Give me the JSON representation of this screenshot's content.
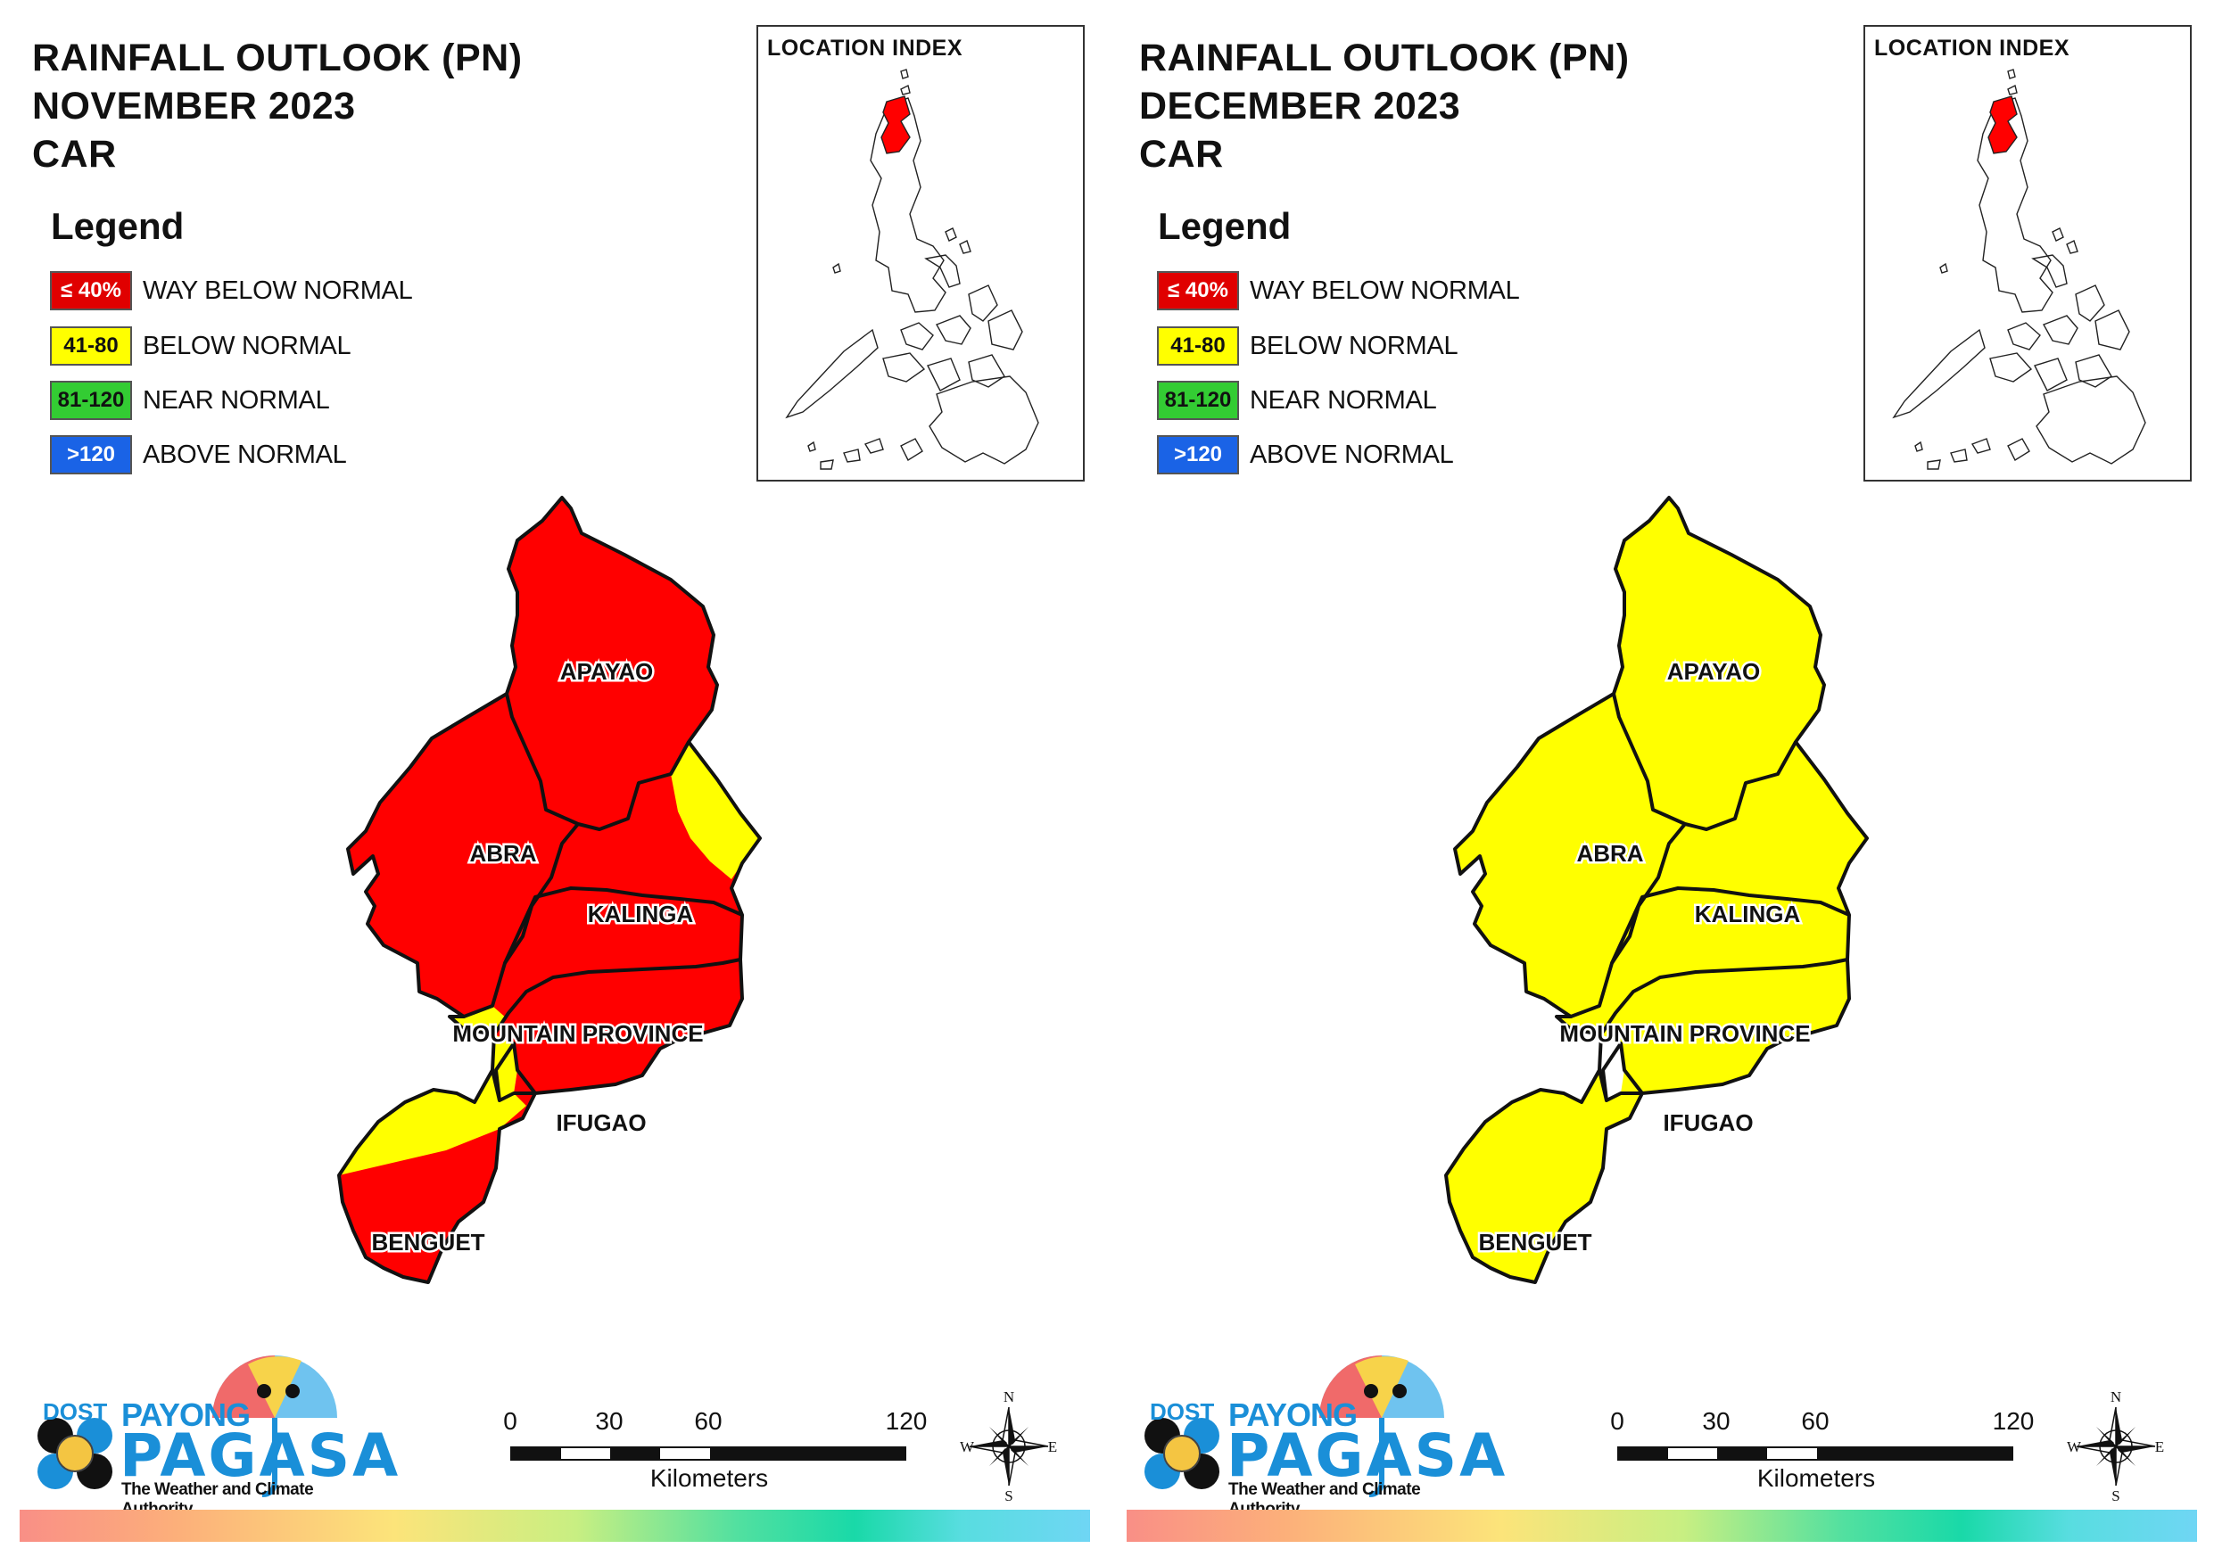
{
  "panels": [
    {
      "title_lines": [
        "RAINFALL OUTLOOK (PN)",
        "NOVEMBER 2023",
        "CAR"
      ],
      "legend_title": "Legend",
      "legend": [
        {
          "swatch": "≤ 40%",
          "label": "WAY BELOW NORMAL",
          "color": "#e00000",
          "text_color": "#ffffff"
        },
        {
          "swatch": "41-80",
          "label": "BELOW NORMAL",
          "color": "#ffff00",
          "text_color": "#111111"
        },
        {
          "swatch": "81-120",
          "label": "NEAR NORMAL",
          "color": "#33cc33",
          "text_color": "#111111"
        },
        {
          "swatch": ">120",
          "label": "ABOVE NORMAL",
          "color": "#1a63e6",
          "text_color": "#ffffff"
        }
      ],
      "inset_title": "LOCATION INDEX",
      "provinces": [
        {
          "name": "APAYAO",
          "category": "WAY BELOW NORMAL"
        },
        {
          "name": "ABRA",
          "category": "WAY BELOW NORMAL"
        },
        {
          "name": "KALINGA",
          "category": "WAY BELOW NORMAL",
          "partial": "BELOW NORMAL (east)"
        },
        {
          "name": "MOUNTAIN PROVINCE",
          "category": "WAY BELOW NORMAL",
          "partial": "BELOW NORMAL (southwest)"
        },
        {
          "name": "IFUGAO",
          "category": "WAY BELOW NORMAL",
          "partial": "BELOW NORMAL (west)"
        },
        {
          "name": "BENGUET",
          "category": "WAY BELOW NORMAL",
          "partial": "BELOW NORMAL (north)"
        }
      ],
      "main_fill": "#ff0000",
      "secondary_fill": "#ffff00"
    },
    {
      "title_lines": [
        "RAINFALL OUTLOOK (PN)",
        "DECEMBER 2023",
        "CAR"
      ],
      "legend_title": "Legend",
      "legend": [
        {
          "swatch": "≤ 40%",
          "label": "WAY BELOW NORMAL",
          "color": "#e00000",
          "text_color": "#ffffff"
        },
        {
          "swatch": "41-80",
          "label": "BELOW NORMAL",
          "color": "#ffff00",
          "text_color": "#111111"
        },
        {
          "swatch": "81-120",
          "label": "NEAR NORMAL",
          "color": "#33cc33",
          "text_color": "#111111"
        },
        {
          "swatch": ">120",
          "label": "ABOVE NORMAL",
          "color": "#1a63e6",
          "text_color": "#ffffff"
        }
      ],
      "inset_title": "LOCATION INDEX",
      "provinces": [
        {
          "name": "APAYAO",
          "category": "BELOW NORMAL"
        },
        {
          "name": "ABRA",
          "category": "BELOW NORMAL"
        },
        {
          "name": "KALINGA",
          "category": "BELOW NORMAL"
        },
        {
          "name": "MOUNTAIN PROVINCE",
          "category": "BELOW NORMAL"
        },
        {
          "name": "IFUGAO",
          "category": "BELOW NORMAL"
        },
        {
          "name": "BENGUET",
          "category": "BELOW NORMAL"
        }
      ],
      "main_fill": "#ffff00",
      "secondary_fill": "#ffff00"
    }
  ],
  "scale": {
    "ticks": [
      "0",
      "30",
      "60",
      "120"
    ],
    "unit": "Kilometers"
  },
  "compass": {
    "n": "N",
    "e": "E",
    "s": "S",
    "w": "W"
  },
  "logo": {
    "dost": "DOST",
    "payong": "PAYONG",
    "pagasa": "PAGASA",
    "tagline": "The Weather and Climate Authority"
  }
}
